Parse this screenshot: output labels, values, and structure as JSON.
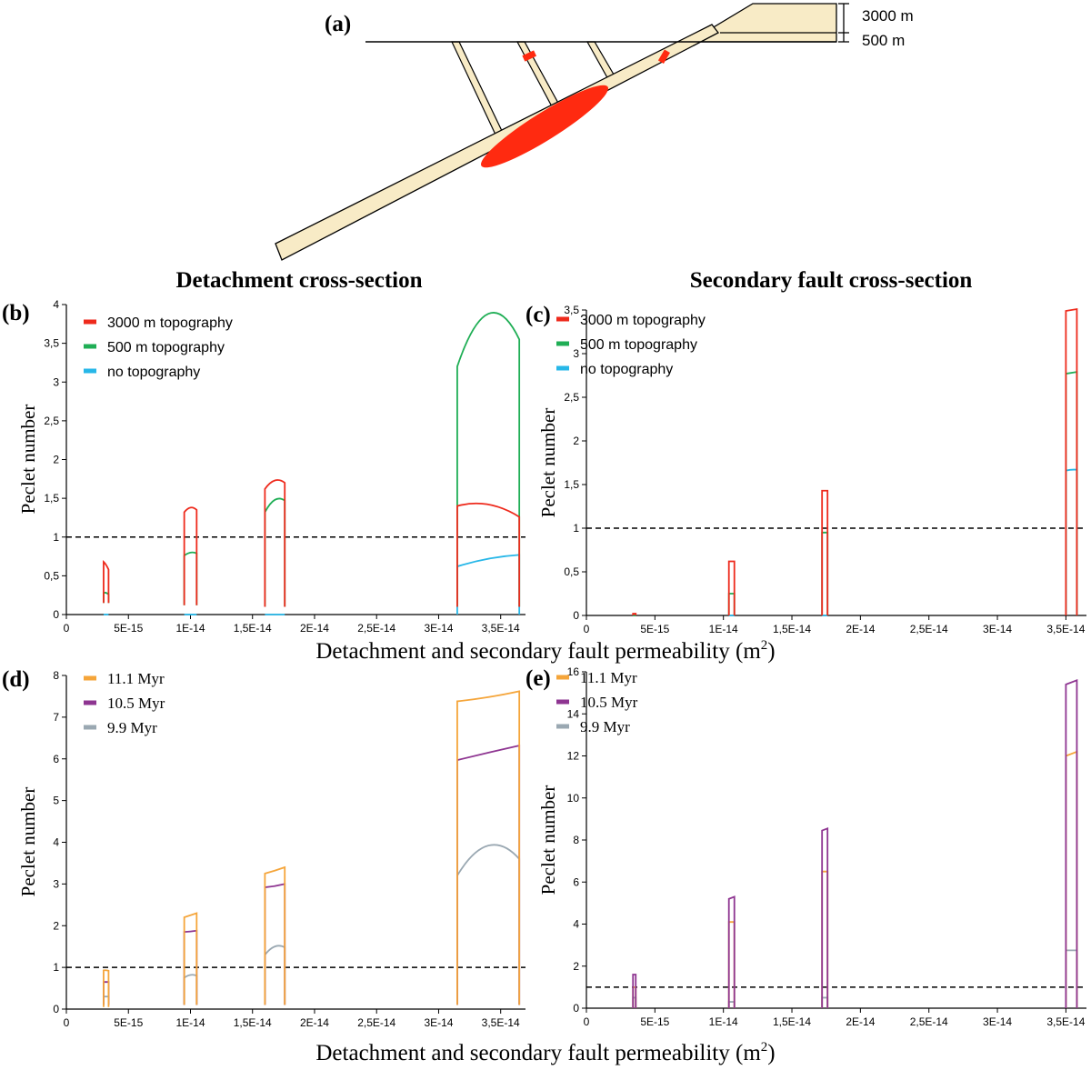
{
  "figure": {
    "panel_a_label": "(a)",
    "dim_upper": "3000 m",
    "dim_lower": "500 m",
    "title_left": "Detachment cross-section",
    "title_right": "Secondary fault cross-section",
    "xlabel_main": "Detachment and secondary fault permeability  (m",
    "xlabel_sup": "2",
    "xlabel_end": ")"
  },
  "colors": {
    "red": "#ee2a1c",
    "green": "#1fae55",
    "blue": "#27b7e8",
    "orange": "#f5a53a",
    "purple": "#8e3591",
    "gray": "#9aa8b2",
    "fault_fill": "#f8ebc6",
    "ore": "#ff2a10"
  },
  "chart_data": [
    {
      "panel": "(b)",
      "type": "line",
      "title": "Detachment cross-section",
      "ylabel": "Peclet number",
      "xlabel": "Detachment and secondary fault permeability (m2)",
      "xlim": [
        0,
        3.7e-14
      ],
      "ylim": [
        0,
        4
      ],
      "xticks": [
        0,
        5e-15,
        1e-14,
        1.5e-14,
        2e-14,
        2.5e-14,
        3e-14,
        3.5e-14
      ],
      "xtick_labels": [
        "0",
        "5E-15",
        "1E-14",
        "1,5E-14",
        "2E-14",
        "2,5E-14",
        "3E-14",
        "3,5E-14"
      ],
      "yticks": [
        0,
        0.5,
        1,
        1.5,
        2,
        2.5,
        3,
        3.5,
        4
      ],
      "ytick_labels": [
        "0",
        "0,5",
        "1",
        "1,5",
        "2",
        "2,5",
        "3",
        "3,5",
        "4"
      ],
      "threshold": 1,
      "legend": [
        {
          "name": "3000 m topography",
          "color": "#ee2a1c"
        },
        {
          "name": "500 m topography",
          "color": "#1fae55"
        },
        {
          "name": "no topography",
          "color": "#27b7e8"
        }
      ],
      "series": [
        {
          "name": "no topography",
          "color": "#27b7e8",
          "segments": [
            {
              "x0": 3e-15,
              "x1": 3.4e-15,
              "base": 0,
              "top": [
                0,
                0,
                0
              ]
            },
            {
              "x0": 9.5e-15,
              "x1": 1.05e-14,
              "base": 0,
              "top": [
                0,
                0,
                0
              ]
            },
            {
              "x0": 1.6e-14,
              "x1": 1.76e-14,
              "base": 0,
              "top": [
                0,
                0,
                0
              ]
            },
            {
              "x0": 3.15e-14,
              "x1": 3.65e-14,
              "base": 0,
              "top": [
                0.62,
                0.72,
                0.77
              ]
            }
          ]
        },
        {
          "name": "500 m topography",
          "color": "#1fae55",
          "segments": [
            {
              "x0": 3e-15,
              "x1": 3.4e-15,
              "base": 0.15,
              "top": [
                0.28,
                0.28,
                0.26
              ]
            },
            {
              "x0": 9.5e-15,
              "x1": 1.05e-14,
              "base": 0.12,
              "top": [
                0.76,
                0.8,
                0.79
              ]
            },
            {
              "x0": 1.6e-14,
              "x1": 1.76e-14,
              "base": 0.1,
              "top": [
                1.32,
                1.48,
                1.47
              ]
            },
            {
              "x0": 3.15e-14,
              "x1": 3.65e-14,
              "base": 0.1,
              "top": [
                3.2,
                3.88,
                3.55
              ]
            }
          ]
        },
        {
          "name": "3000 m topography",
          "color": "#ee2a1c",
          "segments": [
            {
              "x0": 3e-15,
              "x1": 3.4e-15,
              "base": 0.15,
              "top": [
                0.68,
                0.64,
                0.58
              ]
            },
            {
              "x0": 9.5e-15,
              "x1": 1.05e-14,
              "base": 0.12,
              "top": [
                1.32,
                1.38,
                1.35
              ]
            },
            {
              "x0": 1.6e-14,
              "x1": 1.76e-14,
              "base": 0.1,
              "top": [
                1.62,
                1.73,
                1.7
              ]
            },
            {
              "x0": 3.15e-14,
              "x1": 3.65e-14,
              "base": 0.1,
              "top": [
                1.4,
                1.42,
                1.26
              ]
            }
          ]
        }
      ]
    },
    {
      "panel": "(c)",
      "type": "line",
      "title": "Secondary fault cross-section",
      "ylabel": "Peclet number",
      "xlabel": "Detachment and secondary fault permeability (m2)",
      "xlim": [
        0,
        3.65e-14
      ],
      "ylim": [
        0,
        3.5
      ],
      "xticks": [
        0,
        5e-15,
        1e-14,
        1.5e-14,
        2e-14,
        2.5e-14,
        3e-14,
        3.5e-14
      ],
      "xtick_labels": [
        "0",
        "5E-15",
        "1E-14",
        "1,5E-14",
        "2E-14",
        "2,5E-14",
        "3E-14",
        "3,5E-14"
      ],
      "yticks": [
        0,
        0.5,
        1,
        1.5,
        2,
        2.5,
        3,
        3.5
      ],
      "ytick_labels": [
        "0",
        "0,5",
        "1",
        "1,5",
        "2",
        "2,5",
        "3",
        "3,5"
      ],
      "threshold": 1,
      "legend": [
        {
          "name": "3000 m topography",
          "color": "#ee2a1c"
        },
        {
          "name": "500 m topography",
          "color": "#1fae55"
        },
        {
          "name": "no topography",
          "color": "#27b7e8"
        }
      ],
      "series": [
        {
          "name": "no topography",
          "color": "#27b7e8",
          "segments": [
            {
              "x0": 3.4e-15,
              "x1": 3.6e-15,
              "base": 0,
              "top": [
                0,
                0,
                0
              ]
            },
            {
              "x0": 1.04e-14,
              "x1": 1.08e-14,
              "base": 0,
              "top": [
                0,
                0,
                0
              ]
            },
            {
              "x0": 1.72e-14,
              "x1": 1.76e-14,
              "base": 0,
              "top": [
                0,
                0,
                0
              ]
            },
            {
              "x0": 3.5e-14,
              "x1": 3.58e-14,
              "base": 0,
              "top": [
                1.66,
                1.67,
                1.67
              ]
            }
          ]
        },
        {
          "name": "500 m topography",
          "color": "#1fae55",
          "segments": [
            {
              "x0": 3.4e-15,
              "x1": 3.6e-15,
              "base": 0,
              "top": [
                0,
                0,
                0
              ]
            },
            {
              "x0": 1.04e-14,
              "x1": 1.08e-14,
              "base": 0,
              "top": [
                0.25,
                0.25,
                0.25
              ]
            },
            {
              "x0": 1.72e-14,
              "x1": 1.76e-14,
              "base": 0,
              "top": [
                0.95,
                0.95,
                0.95
              ]
            },
            {
              "x0": 3.5e-14,
              "x1": 3.58e-14,
              "base": 0,
              "top": [
                2.77,
                2.78,
                2.79
              ]
            }
          ]
        },
        {
          "name": "3000 m topography",
          "color": "#ee2a1c",
          "segments": [
            {
              "x0": 3.4e-15,
              "x1": 3.6e-15,
              "base": 0,
              "top": [
                0.02,
                0.02,
                0.02
              ]
            },
            {
              "x0": 1.04e-14,
              "x1": 1.08e-14,
              "base": 0,
              "top": [
                0.62,
                0.62,
                0.62
              ]
            },
            {
              "x0": 1.72e-14,
              "x1": 1.76e-14,
              "base": 0,
              "top": [
                1.43,
                1.43,
                1.43
              ]
            },
            {
              "x0": 3.5e-14,
              "x1": 3.58e-14,
              "base": 0,
              "top": [
                3.49,
                3.5,
                3.51
              ]
            }
          ]
        }
      ]
    },
    {
      "panel": "(d)",
      "type": "line",
      "title": "",
      "ylabel": "Peclet number",
      "xlabel": "Detachment and secondary fault permeability (m2)",
      "xlim": [
        0,
        3.7e-14
      ],
      "ylim": [
        0,
        8
      ],
      "xticks": [
        0,
        5e-15,
        1e-14,
        1.5e-14,
        2e-14,
        2.5e-14,
        3e-14,
        3.5e-14
      ],
      "xtick_labels": [
        "0",
        "5E-15",
        "1E-14",
        "1,5E-14",
        "2E-14",
        "2,5E-14",
        "3E-14",
        "3,5E-14"
      ],
      "yticks": [
        0,
        1,
        2,
        3,
        4,
        5,
        6,
        7,
        8
      ],
      "ytick_labels": [
        "0",
        "1",
        "2",
        "3",
        "4",
        "5",
        "6",
        "7",
        "8"
      ],
      "threshold": 1,
      "legend": [
        {
          "name": "11.1 Myr",
          "color": "#f5a53a"
        },
        {
          "name": "10.5 Myr",
          "color": "#8e3591"
        },
        {
          "name": "9.9 Myr",
          "color": "#9aa8b2"
        }
      ],
      "series": [
        {
          "name": "9.9 Myr",
          "color": "#9aa8b2",
          "segments": [
            {
              "x0": 3e-15,
              "x1": 3.4e-15,
              "base": 0.1,
              "top": [
                0.3,
                0.3,
                0.3
              ]
            },
            {
              "x0": 9.5e-15,
              "x1": 1.05e-14,
              "base": 0.1,
              "top": [
                0.75,
                0.82,
                0.8
              ]
            },
            {
              "x0": 1.6e-14,
              "x1": 1.76e-14,
              "base": 0.1,
              "top": [
                1.3,
                1.5,
                1.48
              ]
            },
            {
              "x0": 3.15e-14,
              "x1": 3.65e-14,
              "base": 0.1,
              "top": [
                3.2,
                3.92,
                3.6
              ]
            }
          ]
        },
        {
          "name": "10.5 Myr",
          "color": "#8e3591",
          "segments": [
            {
              "x0": 3e-15,
              "x1": 3.4e-15,
              "base": 0.1,
              "top": [
                0.65,
                0.65,
                0.65
              ]
            },
            {
              "x0": 9.5e-15,
              "x1": 1.05e-14,
              "base": 0.1,
              "top": [
                1.85,
                1.86,
                1.88
              ]
            },
            {
              "x0": 1.6e-14,
              "x1": 1.76e-14,
              "base": 0.1,
              "top": [
                2.92,
                2.95,
                3.0
              ]
            },
            {
              "x0": 3.15e-14,
              "x1": 3.65e-14,
              "base": 0.1,
              "top": [
                5.97,
                6.15,
                6.32
              ]
            }
          ]
        },
        {
          "name": "11.1 Myr",
          "color": "#f5a53a",
          "segments": [
            {
              "x0": 3e-15,
              "x1": 3.4e-15,
              "base": 0.05,
              "top": [
                0.93,
                0.93,
                0.92
              ]
            },
            {
              "x0": 9.5e-15,
              "x1": 1.05e-14,
              "base": 0.1,
              "top": [
                2.2,
                2.25,
                2.3
              ]
            },
            {
              "x0": 1.6e-14,
              "x1": 1.76e-14,
              "base": 0.1,
              "top": [
                3.25,
                3.32,
                3.4
              ]
            },
            {
              "x0": 3.15e-14,
              "x1": 3.65e-14,
              "base": 0.1,
              "top": [
                7.38,
                7.48,
                7.62
              ]
            }
          ]
        }
      ]
    },
    {
      "panel": "(e)",
      "type": "line",
      "title": "",
      "ylabel": "Peclet number",
      "xlabel": "Detachment and secondary fault permeability (m2)",
      "xlim": [
        0,
        3.65e-14
      ],
      "ylim": [
        0,
        16
      ],
      "xticks": [
        0,
        5e-15,
        1e-14,
        1.5e-14,
        2e-14,
        2.5e-14,
        3e-14,
        3.5e-14
      ],
      "xtick_labels": [
        "0",
        "5E-15",
        "1E-14",
        "1,5E-14",
        "2E-14",
        "2,5E-14",
        "3E-14",
        "3,5E-14"
      ],
      "yticks": [
        0,
        2,
        4,
        6,
        8,
        10,
        12,
        14,
        16
      ],
      "ytick_labels": [
        "0",
        "2",
        "4",
        "6",
        "8",
        "10",
        "12",
        "14",
        "16"
      ],
      "threshold": 1,
      "legend": [
        {
          "name": "11.1 Myr",
          "color": "#f5a53a"
        },
        {
          "name": "10.5 Myr",
          "color": "#8e3591"
        },
        {
          "name": "9.9 Myr",
          "color": "#9aa8b2"
        }
      ],
      "series": [
        {
          "name": "9.9 Myr",
          "color": "#9aa8b2",
          "segments": [
            {
              "x0": 3.4e-15,
              "x1": 3.6e-15,
              "base": 0,
              "top": [
                0.5,
                0.5,
                0.5
              ]
            },
            {
              "x0": 1.04e-14,
              "x1": 1.08e-14,
              "base": 0,
              "top": [
                0.3,
                0.3,
                0.3
              ]
            },
            {
              "x0": 1.72e-14,
              "x1": 1.76e-14,
              "base": 0,
              "top": [
                0.5,
                0.5,
                0.5
              ]
            },
            {
              "x0": 3.5e-14,
              "x1": 3.58e-14,
              "base": 0,
              "top": [
                2.75,
                2.75,
                2.75
              ]
            }
          ]
        },
        {
          "name": "11.1 Myr",
          "color": "#f5a53a",
          "segments": [
            {
              "x0": 3.4e-15,
              "x1": 3.6e-15,
              "base": 0,
              "top": [
                1.0,
                1.0,
                1.0
              ]
            },
            {
              "x0": 1.04e-14,
              "x1": 1.08e-14,
              "base": 0,
              "top": [
                4.1,
                4.1,
                4.1
              ]
            },
            {
              "x0": 1.72e-14,
              "x1": 1.76e-14,
              "base": 0,
              "top": [
                6.5,
                6.5,
                6.5
              ]
            },
            {
              "x0": 3.5e-14,
              "x1": 3.58e-14,
              "base": 0,
              "top": [
                12.0,
                12.1,
                12.2
              ]
            }
          ]
        },
        {
          "name": "10.5 Myr",
          "color": "#8e3591",
          "segments": [
            {
              "x0": 3.4e-15,
              "x1": 3.6e-15,
              "base": 0,
              "top": [
                1.6,
                1.6,
                1.6
              ]
            },
            {
              "x0": 1.04e-14,
              "x1": 1.08e-14,
              "base": 0,
              "top": [
                5.2,
                5.25,
                5.3
              ]
            },
            {
              "x0": 1.72e-14,
              "x1": 1.76e-14,
              "base": 0,
              "top": [
                8.45,
                8.5,
                8.55
              ]
            },
            {
              "x0": 3.5e-14,
              "x1": 3.58e-14,
              "base": 0,
              "top": [
                15.4,
                15.5,
                15.6
              ]
            }
          ]
        }
      ]
    }
  ]
}
